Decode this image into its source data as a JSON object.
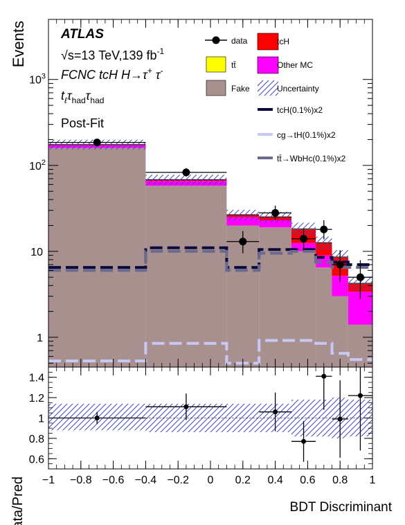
{
  "chart_data": [
    {
      "type": "histogram",
      "panel": "main",
      "ylabel": "Events",
      "yscale": "log",
      "ylim": [
        0.45,
        5000
      ],
      "xlim": [
        -1,
        1
      ],
      "yticks": [
        {
          "value": 1000,
          "label": "10",
          "sup": "3"
        },
        {
          "value": 100,
          "label": "10",
          "sup": "2"
        },
        {
          "value": 10,
          "label": "10",
          "sup": ""
        },
        {
          "value": 1,
          "label": "1",
          "sup": ""
        }
      ],
      "bin_edges": [
        -1,
        -0.4,
        0.1,
        0.3,
        0.5,
        0.65,
        0.75,
        0.85,
        1.0
      ],
      "stack": [
        {
          "name": "Fake",
          "color": "#a8908f",
          "values": [
            160,
            58,
            20,
            19,
            10,
            6.5,
            3.0,
            1.4
          ]
        },
        {
          "name": "Other MC",
          "color": "#ff00ff",
          "values": [
            12,
            8,
            5,
            4,
            2.5,
            2.5,
            2.2,
            2.0
          ]
        },
        {
          "name": "tcH",
          "color": "#ff0000",
          "values": [
            2,
            2,
            1.5,
            2.0,
            5.5,
            3.5,
            3.3,
            0.8
          ]
        },
        {
          "name": "tt̄",
          "color": "#ffff00",
          "values": [
            0.5,
            0.3,
            0.2,
            0.2,
            0.2,
            0.1,
            0.1,
            0.05
          ]
        }
      ],
      "uncertainty_band": {
        "name": "Uncertainty",
        "color": "#3b46c9",
        "rel_low": [
          0.88,
          0.86,
          0.86,
          0.86,
          0.82,
          0.82,
          0.8,
          0.82
        ],
        "rel_high": [
          1.14,
          1.14,
          1.14,
          1.14,
          1.18,
          1.18,
          1.2,
          1.18
        ]
      },
      "data_points": {
        "name": "data",
        "x": [
          -0.7,
          -0.15,
          0.2,
          0.4,
          0.575,
          0.7,
          0.8,
          0.925
        ],
        "y": [
          185,
          83,
          13,
          28,
          14,
          18,
          7,
          5
        ],
        "xerr": [
          0.3,
          0.25,
          0.1,
          0.1,
          0.075,
          0.05,
          0.05,
          0.075
        ],
        "yerr_low": [
          13,
          9,
          3.5,
          5,
          3.7,
          4.2,
          2.6,
          2.2
        ],
        "yerr_high": [
          14,
          10,
          4.2,
          6,
          4.5,
          5.0,
          3.3,
          2.9
        ]
      },
      "signal_lines": [
        {
          "name": "tcH(0.1%)x2",
          "color": "#0a0a3c",
          "values": [
            6.5,
            11,
            6.5,
            10.5,
            10.5,
            8.5,
            7.5,
            7.0
          ]
        },
        {
          "name": "cg→tH(0.1%)x2",
          "color": "#c8c8f5",
          "values": [
            0.53,
            0.85,
            0.5,
            0.92,
            0.92,
            0.85,
            0.65,
            0.55
          ]
        },
        {
          "name": "tt̄→WbHc(0.1%)x2",
          "color": "#6a6a8e",
          "values": [
            6.0,
            10.0,
            6.0,
            9.5,
            10.0,
            7.5,
            6.5,
            6.5
          ]
        }
      ],
      "legend_placement": "top-right"
    },
    {
      "type": "ratio",
      "panel": "ratio",
      "ylabel": "Data/Pred",
      "xlabel": "BDT Discriminant",
      "ylim": [
        0.5,
        1.5
      ],
      "yticks": [
        {
          "value": 0.6,
          "label": "0.6"
        },
        {
          "value": 0.8,
          "label": "0.8"
        },
        {
          "value": 1.0,
          "label": "1"
        },
        {
          "value": 1.2,
          "label": "1.2"
        },
        {
          "value": 1.4,
          "label": "1.4"
        }
      ],
      "xticks": [
        {
          "value": -1,
          "label": "−1"
        },
        {
          "value": -0.8,
          "label": "−0.8"
        },
        {
          "value": -0.6,
          "label": "−0.6"
        },
        {
          "value": -0.4,
          "label": "−0.4"
        },
        {
          "value": -0.2,
          "label": "−0.2"
        },
        {
          "value": 0,
          "label": "0"
        },
        {
          "value": 0.2,
          "label": "0.2"
        },
        {
          "value": 0.4,
          "label": "0.4"
        },
        {
          "value": 0.6,
          "label": "0.6"
        },
        {
          "value": 0.8,
          "label": "0.8"
        },
        {
          "value": 1,
          "label": "1"
        }
      ],
      "points": {
        "x": [
          -0.7,
          -0.15,
          0.4,
          0.575,
          0.7,
          0.8,
          0.925
        ],
        "y": [
          1.0,
          1.11,
          1.06,
          0.77,
          1.41,
          0.99,
          1.22
        ],
        "xerr": [
          0.3,
          0.25,
          0.1,
          0.075,
          0.05,
          0.05,
          0.075
        ],
        "yerr": [
          0.06,
          0.13,
          0.19,
          0.2,
          0.33,
          0.38,
          0.54
        ]
      }
    }
  ],
  "text": {
    "atlas": "ATLAS",
    "energy": "√s=13 TeV,139 fb",
    "energy_sup": "-1",
    "channel_line": "FCNC tcH H→τ",
    "channel_sup1": "+",
    "channel_sup2": "-",
    "final_state": "t",
    "final_state_sub1": "ℓ",
    "final_state_tau": "τ",
    "final_state_sub2": "had",
    "final_state_sub3": "had",
    "postfit": "Post-Fit",
    "ratio_one": "1"
  }
}
